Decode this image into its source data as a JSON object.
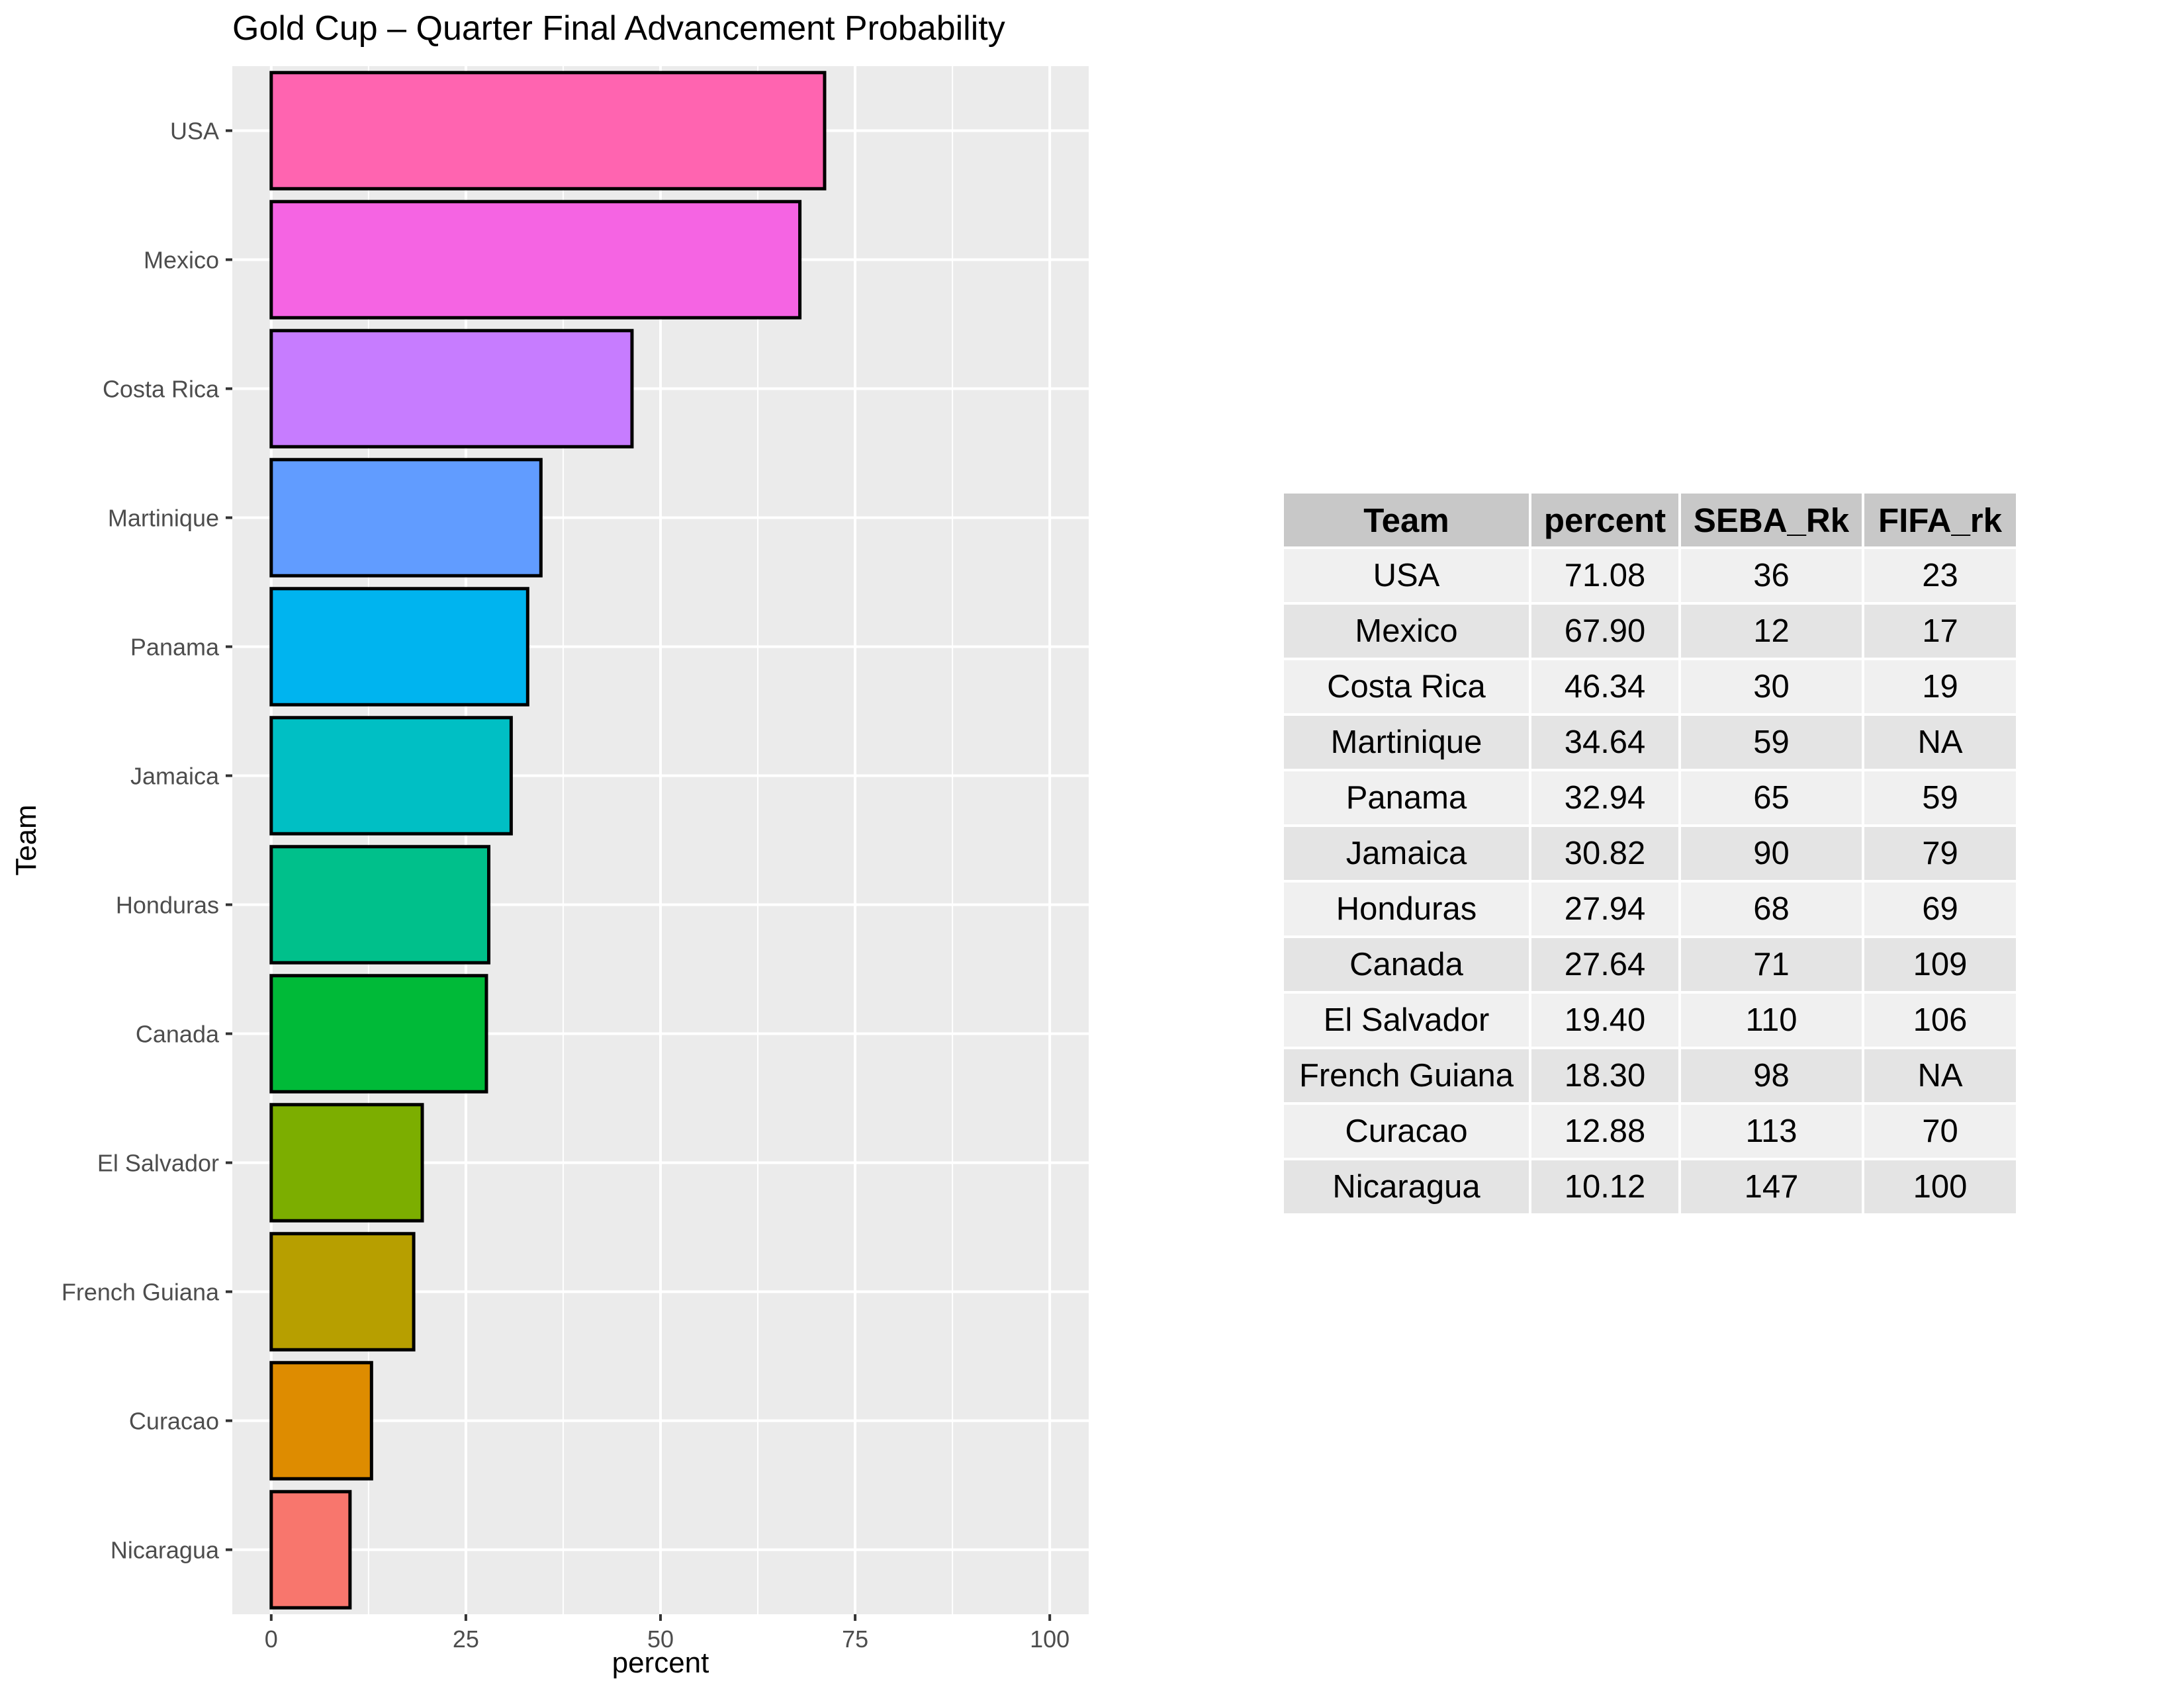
{
  "chart_data": {
    "type": "bar",
    "orientation": "horizontal",
    "title": "Gold Cup – Quarter Final Advancement Probability",
    "xlabel": "percent",
    "ylabel": "Team",
    "xlim": [
      -5,
      105
    ],
    "xticks": [
      0,
      25,
      50,
      75,
      100
    ],
    "grid": true,
    "legend": "none",
    "categories": [
      "USA",
      "Mexico",
      "Costa Rica",
      "Martinique",
      "Panama",
      "Jamaica",
      "Honduras",
      "Canada",
      "El Salvador",
      "French Guiana",
      "Curacao",
      "Nicaragua"
    ],
    "values": [
      71.08,
      67.9,
      46.34,
      34.64,
      32.94,
      30.82,
      27.94,
      27.64,
      19.4,
      18.3,
      12.88,
      10.12
    ],
    "colors": [
      "#FF64B0",
      "#F564E3",
      "#C77CFF",
      "#619CFF",
      "#00B4EF",
      "#00BFC4",
      "#00C08B",
      "#00BA38",
      "#7CAE00",
      "#B79F00",
      "#DE8C00",
      "#F8766D"
    ]
  },
  "table": {
    "headers": [
      "Team",
      "percent",
      "SEBA_Rk",
      "FIFA_rk"
    ],
    "rows": [
      [
        "USA",
        "71.08",
        "36",
        "23"
      ],
      [
        "Mexico",
        "67.90",
        "12",
        "17"
      ],
      [
        "Costa Rica",
        "46.34",
        "30",
        "19"
      ],
      [
        "Martinique",
        "34.64",
        "59",
        "NA"
      ],
      [
        "Panama",
        "32.94",
        "65",
        "59"
      ],
      [
        "Jamaica",
        "30.82",
        "90",
        "79"
      ],
      [
        "Honduras",
        "27.94",
        "68",
        "69"
      ],
      [
        "Canada",
        "27.64",
        "71",
        "109"
      ],
      [
        "El Salvador",
        "19.40",
        "110",
        "106"
      ],
      [
        "French Guiana",
        "18.30",
        "98",
        "NA"
      ],
      [
        "Curacao",
        "12.88",
        "113",
        "70"
      ],
      [
        "Nicaragua",
        "10.12",
        "147",
        "100"
      ]
    ]
  }
}
